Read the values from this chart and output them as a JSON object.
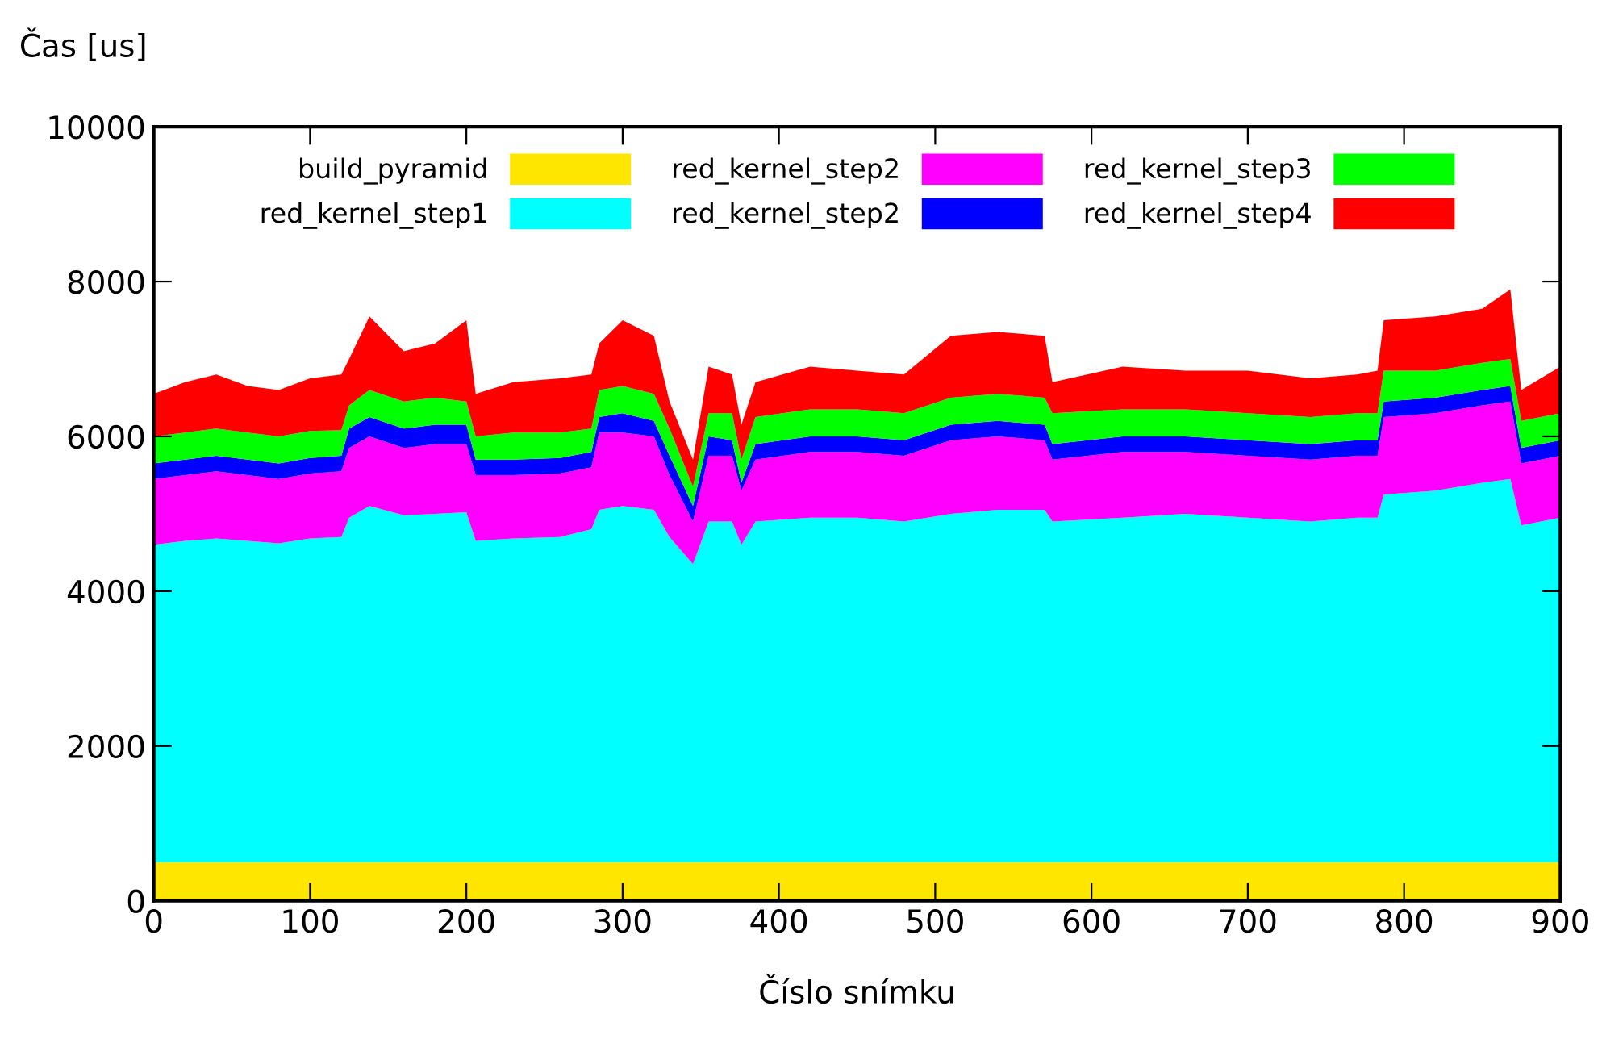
{
  "chart_data": {
    "type": "area",
    "stacked": true,
    "xlabel": "Číslo snímku",
    "ylabel": "Čas [us]",
    "x": [
      0,
      20,
      40,
      60,
      80,
      100,
      120,
      125,
      138,
      160,
      180,
      200,
      206,
      230,
      260,
      280,
      285,
      300,
      320,
      330,
      345,
      355,
      370,
      376,
      385,
      420,
      450,
      480,
      510,
      540,
      570,
      575,
      620,
      660,
      700,
      740,
      770,
      783,
      787,
      820,
      850,
      868,
      875,
      900
    ],
    "series": [
      {
        "name": "build_pyramid",
        "color": "#ffe600",
        "values": [
          500,
          500,
          500,
          500,
          500,
          500,
          500,
          500,
          500,
          500,
          500,
          500,
          500,
          500,
          500,
          500,
          500,
          500,
          500,
          500,
          500,
          500,
          500,
          500,
          500,
          500,
          500,
          500,
          500,
          500,
          500,
          500,
          500,
          500,
          500,
          500,
          500,
          500,
          500,
          500,
          500,
          500,
          500,
          500
        ]
      },
      {
        "name": "red_kernel_step1",
        "color": "#00ffff",
        "values": [
          4100,
          4150,
          4180,
          4150,
          4120,
          4180,
          4200,
          4450,
          4600,
          4480,
          4500,
          4520,
          4150,
          4180,
          4200,
          4300,
          4550,
          4600,
          4550,
          4200,
          3850,
          4400,
          4400,
          4100,
          4400,
          4450,
          4450,
          4400,
          4500,
          4550,
          4550,
          4400,
          4450,
          4500,
          4450,
          4400,
          4450,
          4450,
          4750,
          4800,
          4900,
          4950,
          4350,
          4450
        ]
      },
      {
        "name": "red_kernel_step2",
        "color": "#ff00ff",
        "values": [
          850,
          850,
          870,
          850,
          830,
          840,
          850,
          900,
          900,
          870,
          900,
          880,
          850,
          820,
          820,
          800,
          1000,
          950,
          950,
          800,
          550,
          850,
          850,
          700,
          800,
          850,
          850,
          850,
          950,
          950,
          900,
          800,
          850,
          800,
          800,
          800,
          800,
          800,
          1000,
          1000,
          1000,
          1000,
          800,
          800
        ]
      },
      {
        "name": "red_kernel_step2",
        "color": "#0000ff",
        "values": [
          200,
          200,
          200,
          200,
          200,
          200,
          200,
          250,
          250,
          250,
          250,
          250,
          200,
          200,
          200,
          200,
          200,
          250,
          200,
          250,
          200,
          250,
          200,
          100,
          200,
          200,
          200,
          200,
          200,
          200,
          200,
          200,
          200,
          200,
          200,
          200,
          200,
          200,
          200,
          200,
          200,
          200,
          200,
          200
        ]
      },
      {
        "name": "red_kernel_step3",
        "color": "#00ff00",
        "values": [
          350,
          350,
          350,
          350,
          350,
          350,
          330,
          300,
          350,
          350,
          350,
          300,
          300,
          350,
          330,
          300,
          350,
          350,
          350,
          350,
          250,
          300,
          350,
          300,
          350,
          350,
          350,
          350,
          350,
          350,
          350,
          400,
          350,
          350,
          350,
          350,
          350,
          350,
          400,
          350,
          350,
          350,
          350,
          350
        ]
      },
      {
        "name": "red_kernel_step4",
        "color": "#ff0000",
        "values": [
          550,
          650,
          700,
          600,
          600,
          680,
          720,
          600,
          950,
          650,
          700,
          1050,
          550,
          650,
          700,
          700,
          600,
          850,
          750,
          350,
          350,
          600,
          500,
          450,
          450,
          550,
          500,
          500,
          800,
          800,
          800,
          400,
          550,
          500,
          550,
          500,
          500,
          550,
          650,
          700,
          700,
          900,
          400,
          600
        ]
      }
    ],
    "xlim": [
      0,
      900
    ],
    "xticks": [
      0,
      100,
      200,
      300,
      400,
      500,
      600,
      700,
      800,
      900
    ],
    "ylim": [
      0,
      10000
    ],
    "yticks": [
      0,
      2000,
      4000,
      6000,
      8000,
      10000
    ],
    "grid": false,
    "legend": "top"
  }
}
